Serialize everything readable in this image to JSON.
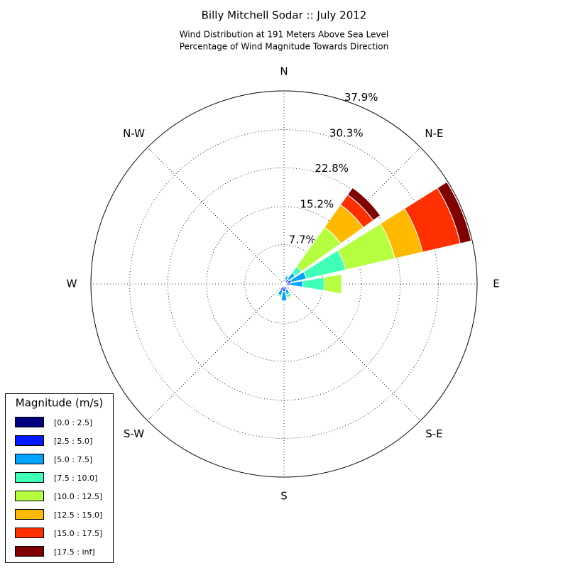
{
  "chart_data": {
    "type": "windrose",
    "title": "Billy Mitchell Sodar :: July 2012",
    "subtitle": [
      "Wind Distribution at 191 Meters Above Sea Level",
      "Percentage of Wind Magnitude Towards Direction"
    ],
    "categories": [
      "N",
      null,
      "N-E",
      null,
      "E",
      null,
      "S-E",
      null,
      "S",
      null,
      "S-W",
      null,
      "W",
      null,
      "N-W",
      null
    ],
    "ylim": [
      0,
      37.9
    ],
    "yticks": [
      {
        "value": 7.7,
        "label": "7.7%"
      },
      {
        "value": 15.2,
        "label": "15.2%"
      },
      {
        "value": 22.8,
        "label": "22.8%"
      },
      {
        "value": 30.3,
        "label": "30.3%"
      },
      {
        "value": 37.9,
        "label": "37.9%"
      }
    ],
    "grid": true,
    "legend_title": "Magnitude (m/s)",
    "legend_position": "lower left",
    "series": [
      {
        "name": "[0.0 : 2.5]",
        "color": "#00007f",
        "values": [
          0.1,
          0.2,
          0.2,
          0.3,
          0.2,
          0.2,
          0.2,
          0.3,
          0.3,
          0.3,
          0.2,
          0.1,
          0.1,
          0.1,
          0.1,
          0.1
        ]
      },
      {
        "name": "[2.5 : 5.0]",
        "color": "#0019ff",
        "values": [
          0.2,
          0.6,
          1.0,
          1.2,
          1.0,
          0.5,
          0.5,
          0.8,
          1.2,
          1.0,
          0.4,
          0.2,
          0.1,
          0.1,
          0.2,
          0.3
        ]
      },
      {
        "name": "[5.0 : 7.5]",
        "color": "#00a4ff",
        "values": [
          0.1,
          0.8,
          1.5,
          3.0,
          2.5,
          0.3,
          0.3,
          1.0,
          1.8,
          1.0,
          0.2,
          0,
          0,
          0,
          0,
          0
        ]
      },
      {
        "name": "[7.5 : 10.0]",
        "color": "#40ffb6",
        "values": [
          0,
          0.3,
          1.5,
          7.9,
          4.2,
          0,
          0,
          0.6,
          0,
          0.3,
          0,
          0,
          0,
          0,
          0,
          0
        ]
      },
      {
        "name": "[10.0 : 12.5]",
        "color": "#b6ff40",
        "values": [
          0,
          0,
          9.5,
          9.9,
          3.5,
          0,
          0,
          0.3,
          0,
          0,
          0,
          0,
          0,
          0,
          0,
          0
        ]
      },
      {
        "name": "[12.5 : 15.0]",
        "color": "#ffb900",
        "values": [
          0,
          0,
          5.4,
          5.6,
          0,
          0,
          0,
          0,
          0,
          0,
          0,
          0,
          0,
          0,
          0,
          0
        ]
      },
      {
        "name": "[15.0 : 17.5]",
        "color": "#ff3000",
        "values": [
          0,
          0,
          2.4,
          7.6,
          0,
          0,
          0,
          0,
          0,
          0,
          0,
          0,
          0,
          0,
          0,
          0
        ]
      },
      {
        "name": "[17.5 : inf]",
        "color": "#7f0000",
        "values": [
          0,
          0,
          1.7,
          2.2,
          0,
          0,
          0,
          0,
          0,
          0,
          0,
          0,
          0,
          0,
          0,
          0
        ]
      }
    ]
  }
}
